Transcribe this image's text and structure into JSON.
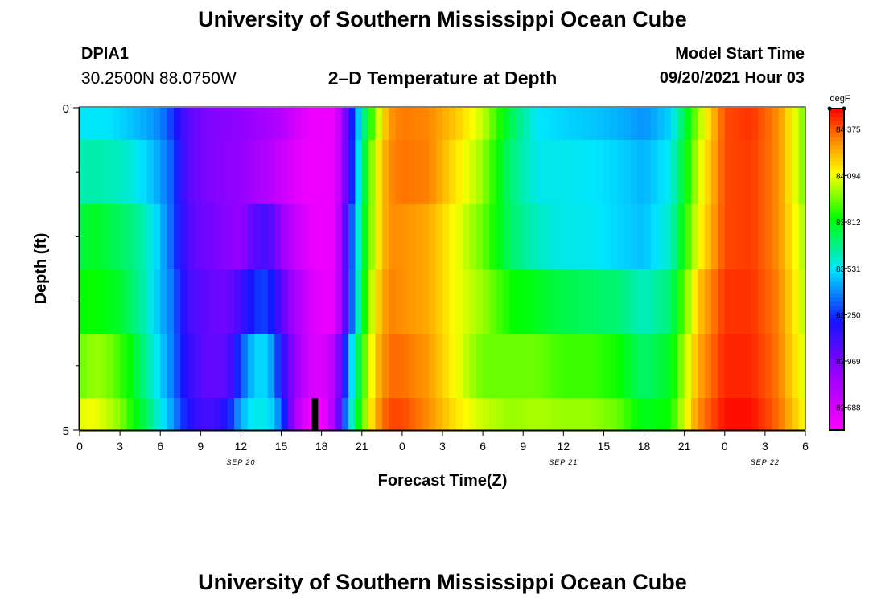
{
  "header": {
    "title": "University of Southern Mississippi Ocean Cube",
    "station_id": "DPIA1",
    "coordinates": "30.2500N  88.0750W",
    "plot_title": "2–D Temperature at Depth",
    "model_start_label": "Model Start Time",
    "model_start_value": "09/20/2021 Hour 03"
  },
  "footer": {
    "title": "University of Southern Mississippi Ocean Cube"
  },
  "chart_data": {
    "type": "heatmap",
    "title": "2–D Temperature at Depth",
    "xlabel": "Forecast Time(Z)",
    "ylabel": "Depth (ft)",
    "y_range": [
      0,
      5
    ],
    "y_tick_labels": [
      "0",
      "5"
    ],
    "x_range_hours": [
      0,
      54
    ],
    "x_tick_labels": [
      "0",
      "3",
      "6",
      "9",
      "12",
      "15",
      "18",
      "21",
      "0",
      "3",
      "6",
      "9",
      "12",
      "15",
      "18",
      "21",
      "0",
      "3",
      "6"
    ],
    "date_labels": [
      {
        "label": "SEP 20",
        "hour": 12
      },
      {
        "label": "SEP 21",
        "hour": 36
      },
      {
        "label": "SEP 22",
        "hour": 51
      }
    ],
    "colorbar": {
      "unit": "degF",
      "min": 82.55,
      "max": 84.5,
      "tick_values": [
        82.688,
        82.969,
        83.25,
        83.531,
        83.812,
        84.094,
        84.375
      ],
      "tick_labels": [
        "82.688",
        "82.969",
        "83.250",
        "83.531",
        "83.812",
        "84.094",
        "84.375"
      ]
    },
    "marker": {
      "hour": 17.5,
      "depth_from": 4.5,
      "depth_to": 5,
      "color": "#000000"
    },
    "depth_levels_ft": [
      0.25,
      1,
      2,
      3,
      4,
      4.75
    ],
    "time_knots_hours": [
      0,
      1,
      2,
      3,
      4,
      5,
      6,
      7,
      8,
      9,
      10,
      11,
      12,
      13,
      14,
      15,
      16,
      17,
      18,
      19,
      20,
      21,
      22,
      23,
      24,
      26,
      28,
      30,
      32,
      34,
      36,
      38,
      40,
      42,
      44,
      46,
      48,
      50,
      52,
      54
    ],
    "temperature_degF": [
      [
        83.53,
        83.53,
        83.53,
        83.5,
        83.47,
        83.43,
        83.38,
        83.25,
        83.05,
        82.98,
        82.95,
        82.93,
        82.91,
        82.88,
        82.85,
        82.8,
        82.7,
        82.62,
        82.6,
        82.61,
        83.1,
        83.6,
        84.0,
        84.28,
        84.33,
        84.31,
        84.2,
        84.05,
        83.75,
        83.53,
        83.5,
        83.48,
        83.45,
        83.4,
        83.5,
        84.0,
        84.4,
        84.43,
        84.3,
        83.95
      ],
      [
        83.62,
        83.63,
        83.62,
        83.6,
        83.56,
        83.5,
        83.42,
        83.3,
        83.05,
        82.98,
        82.95,
        82.92,
        82.9,
        82.85,
        82.8,
        82.73,
        82.66,
        82.6,
        82.6,
        82.63,
        83.1,
        83.65,
        84.1,
        84.3,
        84.34,
        84.32,
        84.15,
        84.0,
        83.7,
        83.55,
        83.55,
        83.53,
        83.5,
        83.45,
        83.55,
        84.05,
        84.4,
        84.42,
        84.3,
        83.95
      ],
      [
        83.75,
        83.8,
        83.76,
        83.72,
        83.68,
        83.6,
        83.47,
        83.3,
        83.08,
        83.0,
        82.98,
        82.93,
        82.9,
        83.05,
        83.1,
        82.9,
        82.75,
        82.65,
        82.6,
        82.62,
        83.2,
        83.7,
        84.1,
        84.3,
        84.3,
        84.25,
        84.1,
        83.95,
        83.72,
        83.6,
        83.55,
        83.55,
        83.5,
        83.47,
        83.6,
        84.1,
        84.4,
        84.42,
        84.3,
        84.0
      ],
      [
        83.83,
        83.85,
        83.82,
        83.78,
        83.7,
        83.6,
        83.45,
        83.35,
        83.1,
        83.05,
        83.0,
        83.0,
        83.1,
        83.25,
        83.28,
        83.05,
        82.85,
        82.7,
        82.62,
        82.62,
        83.2,
        83.75,
        84.15,
        84.32,
        84.3,
        84.25,
        84.1,
        84.0,
        83.85,
        83.8,
        83.75,
        83.72,
        83.7,
        83.6,
        83.7,
        84.2,
        84.43,
        84.43,
        84.32,
        84.02
      ],
      [
        83.95,
        84.0,
        83.98,
        83.9,
        83.8,
        83.65,
        83.5,
        83.35,
        83.15,
        83.05,
        83.02,
        83.05,
        83.3,
        83.5,
        83.5,
        83.2,
        82.9,
        82.7,
        82.65,
        82.8,
        83.4,
        83.85,
        84.2,
        84.35,
        84.35,
        84.28,
        84.1,
        83.95,
        83.95,
        83.95,
        83.9,
        83.9,
        83.85,
        83.7,
        83.8,
        84.25,
        84.45,
        84.45,
        84.33,
        84.05
      ],
      [
        84.08,
        84.1,
        84.05,
        83.98,
        83.85,
        83.72,
        83.55,
        83.4,
        83.2,
        83.1,
        83.1,
        83.2,
        83.45,
        83.55,
        83.55,
        83.35,
        82.85,
        82.6,
        82.58,
        82.85,
        83.5,
        83.9,
        84.25,
        84.4,
        84.4,
        84.3,
        84.15,
        84.05,
        84.0,
        84.02,
        84.0,
        84.0,
        83.95,
        83.8,
        83.85,
        84.3,
        84.48,
        84.48,
        84.35,
        84.1
      ]
    ]
  }
}
